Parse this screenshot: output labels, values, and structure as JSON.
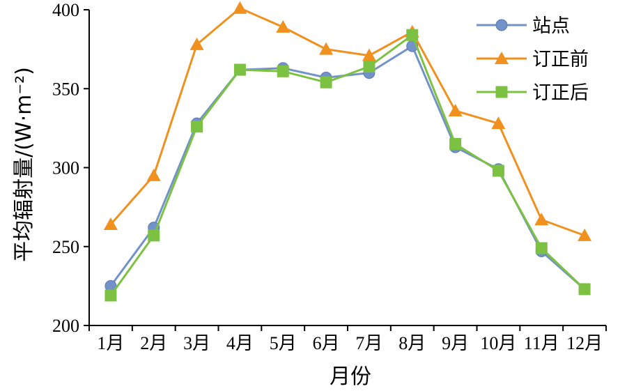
{
  "chart_data": {
    "type": "line",
    "categories": [
      "1月",
      "2月",
      "3月",
      "4月",
      "5月",
      "6月",
      "7月",
      "8月",
      "9月",
      "10月",
      "11月",
      "12月"
    ],
    "series": [
      {
        "name": "站点",
        "color": "#7393c8",
        "marker": "circle",
        "values": [
          225,
          262,
          328,
          362,
          363,
          357,
          360,
          377,
          313,
          299,
          247,
          223
        ]
      },
      {
        "name": "订正前",
        "color": "#f0901e",
        "marker": "triangle",
        "values": [
          264,
          295,
          378,
          401,
          389,
          375,
          371,
          386,
          336,
          328,
          267,
          257
        ]
      },
      {
        "name": "订正后",
        "color": "#7dc143",
        "marker": "square",
        "values": [
          219,
          257,
          326,
          362,
          361,
          354,
          364,
          384,
          315,
          298,
          249,
          223
        ]
      }
    ],
    "xlabel": "月份",
    "ylabel": "平均辐射量/(W·m⁻²)",
    "ylim": [
      200,
      400
    ],
    "yticks": [
      200,
      250,
      300,
      350,
      400
    ],
    "grid": false,
    "legend_position": "top-right"
  }
}
